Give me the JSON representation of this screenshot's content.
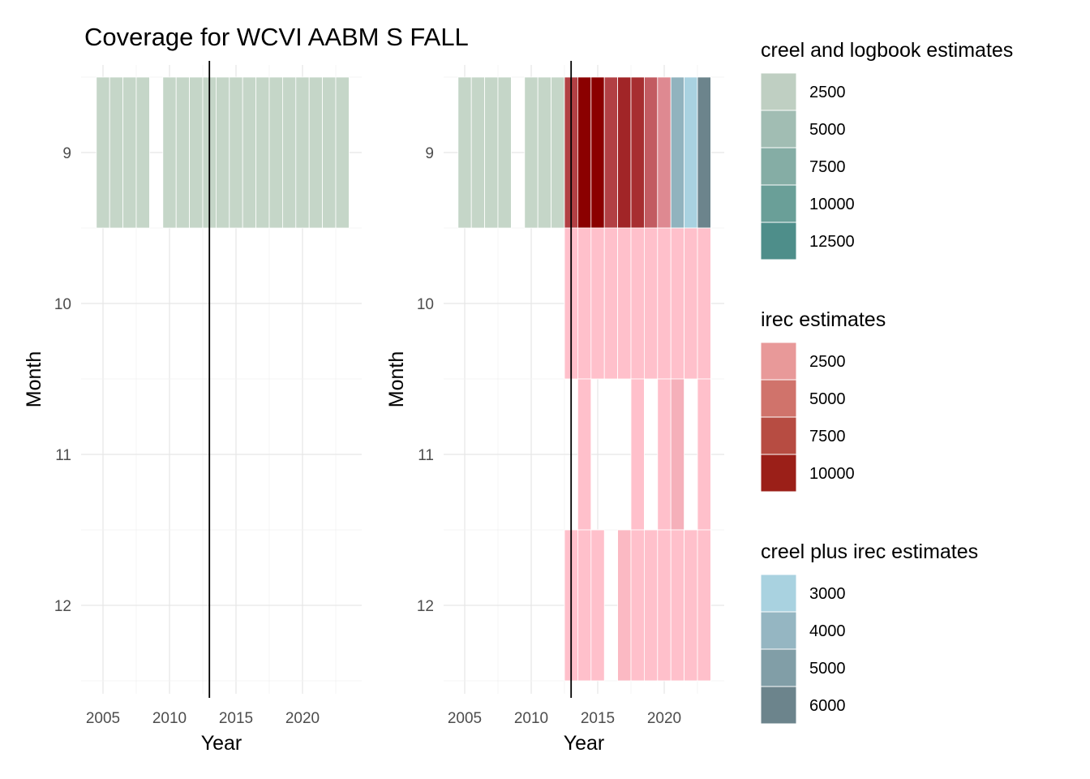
{
  "title": "Coverage for WCVI AABM S FALL",
  "chart_data": [
    {
      "type": "heatmap",
      "panel": "left",
      "xlabel": "Year",
      "ylabel": "Month",
      "x_ticks": [
        2005,
        2010,
        2015,
        2020
      ],
      "y_ticks": [
        9,
        10,
        11,
        12
      ],
      "xlim": [
        2004,
        2025
      ],
      "ylim": [
        8.5,
        12.5
      ],
      "reference_line_x": 2013,
      "tiles": [
        {
          "year": 2005,
          "month": 9,
          "layer": "creel and logbook estimates",
          "value": 1500
        },
        {
          "year": 2006,
          "month": 9,
          "layer": "creel and logbook estimates",
          "value": 1500
        },
        {
          "year": 2007,
          "month": 9,
          "layer": "creel and logbook estimates",
          "value": 1500
        },
        {
          "year": 2008,
          "month": 9,
          "layer": "creel and logbook estimates",
          "value": 1500
        },
        {
          "year": 2010,
          "month": 9,
          "layer": "creel and logbook estimates",
          "value": 1500
        },
        {
          "year": 2011,
          "month": 9,
          "layer": "creel and logbook estimates",
          "value": 1500
        },
        {
          "year": 2012,
          "month": 9,
          "layer": "creel and logbook estimates",
          "value": 1500
        },
        {
          "year": 2013,
          "month": 9,
          "layer": "creel and logbook estimates",
          "value": 1500
        },
        {
          "year": 2014,
          "month": 9,
          "layer": "creel and logbook estimates",
          "value": 1500
        },
        {
          "year": 2015,
          "month": 9,
          "layer": "creel and logbook estimates",
          "value": 1500
        },
        {
          "year": 2016,
          "month": 9,
          "layer": "creel and logbook estimates",
          "value": 1500
        },
        {
          "year": 2017,
          "month": 9,
          "layer": "creel and logbook estimates",
          "value": 1500
        },
        {
          "year": 2018,
          "month": 9,
          "layer": "creel and logbook estimates",
          "value": 1500
        },
        {
          "year": 2019,
          "month": 9,
          "layer": "creel and logbook estimates",
          "value": 1500
        },
        {
          "year": 2020,
          "month": 9,
          "layer": "creel and logbook estimates",
          "value": 1500
        },
        {
          "year": 2021,
          "month": 9,
          "layer": "creel and logbook estimates",
          "value": 1500
        },
        {
          "year": 2022,
          "month": 9,
          "layer": "creel and logbook estimates",
          "value": 1500
        },
        {
          "year": 2023,
          "month": 9,
          "layer": "creel and logbook estimates",
          "value": 1500
        }
      ]
    },
    {
      "type": "heatmap",
      "panel": "right",
      "xlabel": "Year",
      "ylabel": "Month",
      "x_ticks": [
        2005,
        2010,
        2015,
        2020
      ],
      "y_ticks": [
        9,
        10,
        11,
        12
      ],
      "xlim": [
        2004,
        2025
      ],
      "ylim": [
        8.5,
        12.5
      ],
      "reference_line_x": 2013,
      "tiles": [
        {
          "year": 2005,
          "month": 9,
          "layer": "creel and logbook estimates",
          "value": 1500
        },
        {
          "year": 2006,
          "month": 9,
          "layer": "creel and logbook estimates",
          "value": 1500
        },
        {
          "year": 2007,
          "month": 9,
          "layer": "creel and logbook estimates",
          "value": 1500
        },
        {
          "year": 2008,
          "month": 9,
          "layer": "creel and logbook estimates",
          "value": 1500
        },
        {
          "year": 2010,
          "month": 9,
          "layer": "creel and logbook estimates",
          "value": 1500
        },
        {
          "year": 2011,
          "month": 9,
          "layer": "creel and logbook estimates",
          "value": 1500
        },
        {
          "year": 2012,
          "month": 9,
          "layer": "creel and logbook estimates",
          "value": 1500
        },
        {
          "year": 2013,
          "month": 9,
          "layer": "irec estimates",
          "value": 7000
        },
        {
          "year": 2014,
          "month": 9,
          "layer": "irec estimates",
          "value": 10500
        },
        {
          "year": 2015,
          "month": 9,
          "layer": "irec estimates",
          "value": 10500
        },
        {
          "year": 2016,
          "month": 9,
          "layer": "irec estimates",
          "value": 7000
        },
        {
          "year": 2017,
          "month": 9,
          "layer": "irec estimates",
          "value": 8500
        },
        {
          "year": 2018,
          "month": 9,
          "layer": "irec estimates",
          "value": 8000
        },
        {
          "year": 2019,
          "month": 9,
          "layer": "irec estimates",
          "value": 5500
        },
        {
          "year": 2020,
          "month": 9,
          "layer": "irec estimates",
          "value": 3000
        },
        {
          "year": 2021,
          "month": 9,
          "layer": "creel plus irec estimates",
          "value": 4200
        },
        {
          "year": 2022,
          "month": 9,
          "layer": "creel plus irec estimates",
          "value": 3000
        },
        {
          "year": 2023,
          "month": 9,
          "layer": "creel plus irec estimates",
          "value": 6000
        },
        {
          "year": 2013,
          "month": 10,
          "layer": "irec estimates",
          "value": 0
        },
        {
          "year": 2014,
          "month": 10,
          "layer": "irec estimates",
          "value": 0
        },
        {
          "year": 2015,
          "month": 10,
          "layer": "irec estimates",
          "value": 0
        },
        {
          "year": 2016,
          "month": 10,
          "layer": "irec estimates",
          "value": 0
        },
        {
          "year": 2017,
          "month": 10,
          "layer": "irec estimates",
          "value": 0
        },
        {
          "year": 2018,
          "month": 10,
          "layer": "irec estimates",
          "value": 0
        },
        {
          "year": 2019,
          "month": 10,
          "layer": "irec estimates",
          "value": 0
        },
        {
          "year": 2020,
          "month": 10,
          "layer": "irec estimates",
          "value": 0
        },
        {
          "year": 2021,
          "month": 10,
          "layer": "irec estimates",
          "value": 0
        },
        {
          "year": 2022,
          "month": 10,
          "layer": "irec estimates",
          "value": 0
        },
        {
          "year": 2023,
          "month": 10,
          "layer": "irec estimates",
          "value": 0
        },
        {
          "year": 2014,
          "month": 11,
          "layer": "irec estimates",
          "value": 0
        },
        {
          "year": 2018,
          "month": 11,
          "layer": "irec estimates",
          "value": 0
        },
        {
          "year": 2020,
          "month": 11,
          "layer": "irec estimates",
          "value": 0
        },
        {
          "year": 2021,
          "month": 11,
          "layer": "irec estimates",
          "value": 900
        },
        {
          "year": 2023,
          "month": 11,
          "layer": "irec estimates",
          "value": 0
        },
        {
          "year": 2013,
          "month": 12,
          "layer": "irec estimates",
          "value": 0
        },
        {
          "year": 2014,
          "month": 12,
          "layer": "irec estimates",
          "value": 0
        },
        {
          "year": 2015,
          "month": 12,
          "layer": "irec estimates",
          "value": 0
        },
        {
          "year": 2017,
          "month": 12,
          "layer": "irec estimates",
          "value": 400
        },
        {
          "year": 2018,
          "month": 12,
          "layer": "irec estimates",
          "value": 0
        },
        {
          "year": 2019,
          "month": 12,
          "layer": "irec estimates",
          "value": 0
        },
        {
          "year": 2020,
          "month": 12,
          "layer": "irec estimates",
          "value": 0
        },
        {
          "year": 2021,
          "month": 12,
          "layer": "irec estimates",
          "value": 0
        },
        {
          "year": 2022,
          "month": 12,
          "layer": "irec estimates",
          "value": 0
        },
        {
          "year": 2023,
          "month": 12,
          "layer": "irec estimates",
          "value": 0
        }
      ]
    }
  ],
  "legends": [
    {
      "title": "creel and logbook estimates",
      "entries": [
        {
          "label": "2500",
          "color": "#bfcfc2"
        },
        {
          "label": "5000",
          "color": "#a1bdb3"
        },
        {
          "label": "7500",
          "color": "#85ada5"
        },
        {
          "label": "10000",
          "color": "#6a9f98"
        },
        {
          "label": "12500",
          "color": "#4e8e8a"
        }
      ]
    },
    {
      "title": "irec estimates",
      "entries": [
        {
          "label": "2500",
          "color": "#e89999"
        },
        {
          "label": "5000",
          "color": "#d0736b"
        },
        {
          "label": "7500",
          "color": "#b74c42"
        },
        {
          "label": "10000",
          "color": "#9b1f18"
        }
      ]
    },
    {
      "title": "creel plus irec estimates",
      "entries": [
        {
          "label": "3000",
          "color": "#a9d2e0"
        },
        {
          "label": "4000",
          "color": "#95b6c2"
        },
        {
          "label": "5000",
          "color": "#819ea7"
        },
        {
          "label": "6000",
          "color": "#6c848c"
        }
      ]
    }
  ],
  "colors": {
    "creel_and_logbook": {
      "low": "#d5e0d0",
      "high": "#4e8e8a"
    },
    "irec": {
      "low": "#ffc0cb",
      "high": "#8b0000"
    },
    "creel_plus_irec": {
      "low": "#a9d2e0",
      "high": "#6c848c"
    }
  }
}
